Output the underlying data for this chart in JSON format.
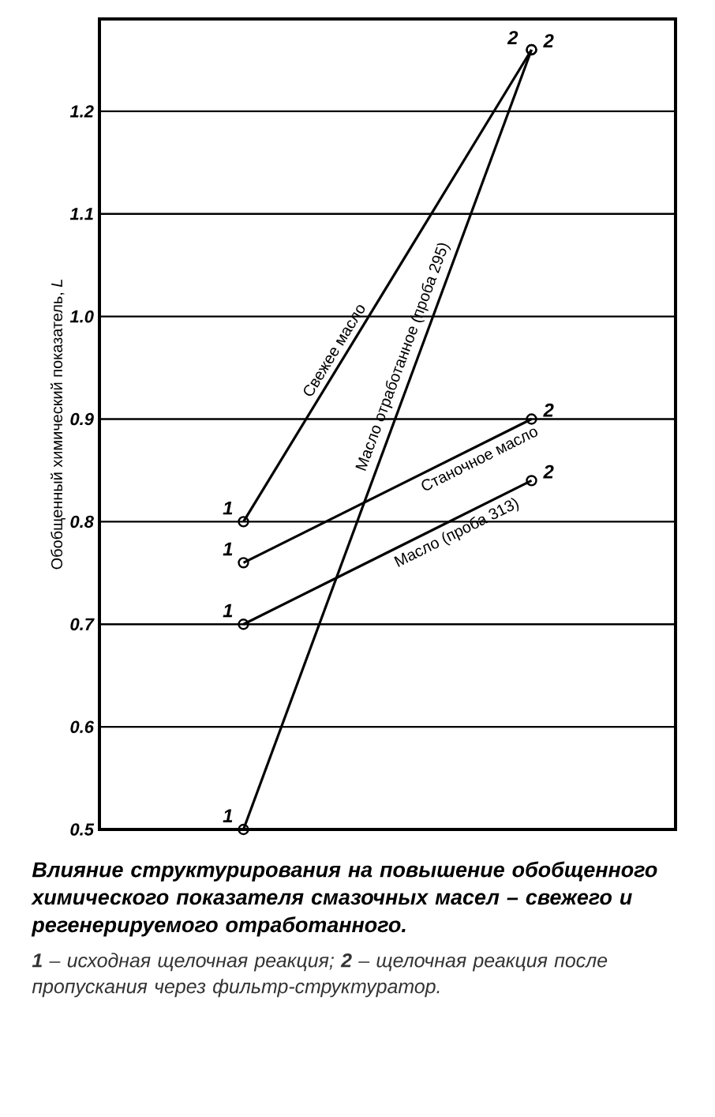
{
  "chart_data": {
    "type": "line",
    "title": "Влияние структурирования на повышение обобщенного химического показателя смазочных масел – свежего и регенерируемого отработанного.",
    "ylabel": "Обобщенный химический показатель, *L*",
    "categories": [
      null,
      null
    ],
    "ylim": [
      0.5,
      1.29
    ],
    "yticks": [
      0.5,
      0.6,
      0.7,
      0.8,
      0.9,
      {
        "value": 1.0,
        "label": "1.0"
      },
      1.1,
      1.2
    ],
    "tick_labels": "y",
    "grid": "y",
    "marker": "circle",
    "line_style": "solid",
    "series": [
      {
        "name": "Свежее масло",
        "color": "#000000",
        "values": [
          0.8,
          1.26
        ]
      },
      {
        "name": "Станочное масло",
        "color": "#000000",
        "values": [
          0.76,
          0.9
        ]
      },
      {
        "name": "Масло (проба 313)",
        "color": "#000000",
        "values": [
          0.7,
          0.84
        ]
      },
      {
        "name": "Масло отработанное (проба 295)",
        "color": "#000000",
        "values": [
          0.5,
          1.26
        ]
      }
    ],
    "annotations": [
      "1",
      "1",
      "1",
      "1",
      "2",
      "2",
      "2",
      "2",
      "**1** – исходная щелочная реакция; **2** – щелочная реакция после пропускания через фильтр-структуратор."
    ]
  }
}
